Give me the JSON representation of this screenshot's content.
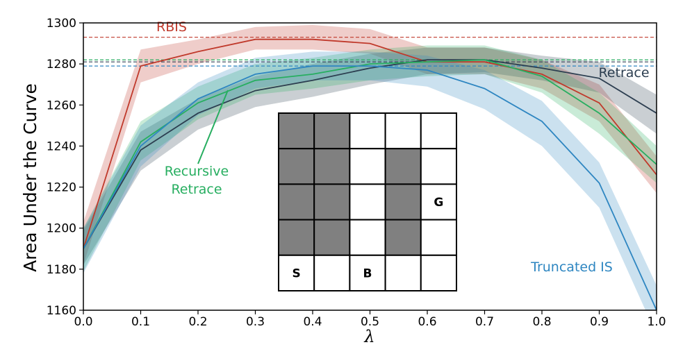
{
  "chart_data": {
    "type": "line",
    "title": "",
    "xlabel": "λ",
    "ylabel": "Area Under the Curve",
    "xlim": [
      0.0,
      1.0
    ],
    "ylim": [
      1160,
      1300
    ],
    "x_ticks": [
      "0.0",
      "0.1",
      "0.2",
      "0.3",
      "0.4",
      "0.5",
      "0.6",
      "0.7",
      "0.8",
      "0.9",
      "1.0"
    ],
    "y_ticks": [
      "1160",
      "1180",
      "1200",
      "1220",
      "1240",
      "1260",
      "1280",
      "1300"
    ],
    "x": [
      0.0,
      0.1,
      0.2,
      0.3,
      0.4,
      0.5,
      0.6,
      0.7,
      0.8,
      0.9,
      1.0
    ],
    "series": [
      {
        "name": "RBIS",
        "color": "#c0392b",
        "values": [
          1190,
          1279,
          1286,
          1292,
          1292,
          1290,
          1281,
          1281,
          1275,
          1261,
          1226
        ],
        "lower": [
          1182,
          1271,
          1280,
          1287,
          1287,
          1285,
          1275,
          1275,
          1268,
          1252,
          1217
        ],
        "upper": [
          1203,
          1287,
          1292,
          1298,
          1299,
          1297,
          1288,
          1288,
          1282,
          1270,
          1235
        ],
        "baseline": 1293
      },
      {
        "name": "Retrace",
        "color": "#2c3e50",
        "values": [
          1190,
          1238,
          1256,
          1267,
          1272,
          1278,
          1282,
          1282,
          1278,
          1273,
          1256
        ],
        "lower": [
          1182,
          1228,
          1248,
          1259,
          1264,
          1270,
          1275,
          1276,
          1272,
          1266,
          1246
        ],
        "upper": [
          1199,
          1247,
          1263,
          1274,
          1280,
          1285,
          1288,
          1288,
          1284,
          1281,
          1265
        ],
        "baseline": 1281
      },
      {
        "name": "Recursive Retrace",
        "color": "#27ae60",
        "values": [
          1190,
          1242,
          1261,
          1272,
          1275,
          1280,
          1281,
          1282,
          1274,
          1256,
          1231
        ],
        "lower": [
          1179,
          1233,
          1253,
          1265,
          1268,
          1272,
          1274,
          1275,
          1266,
          1246,
          1222
        ],
        "upper": [
          1200,
          1252,
          1269,
          1280,
          1283,
          1287,
          1289,
          1289,
          1282,
          1266,
          1240
        ],
        "baseline": 1282
      },
      {
        "name": "Truncated IS",
        "color": "#2e86c1",
        "values": [
          1190,
          1240,
          1263,
          1275,
          1279,
          1279,
          1277,
          1268,
          1252,
          1222,
          1160
        ],
        "lower": [
          1178,
          1230,
          1255,
          1268,
          1272,
          1272,
          1269,
          1258,
          1240,
          1210,
          1148
        ],
        "upper": [
          1200,
          1250,
          1271,
          1283,
          1286,
          1286,
          1284,
          1277,
          1262,
          1232,
          1172
        ],
        "baseline": 1279
      }
    ],
    "annotations": [
      {
        "text": "RBIS",
        "series": "RBIS"
      },
      {
        "text": "Retrace",
        "series": "Retrace"
      },
      {
        "text": [
          "Recursive",
          "Retrace"
        ],
        "series": "Recursive Retrace"
      },
      {
        "text": "Truncated IS",
        "series": "Truncated IS"
      }
    ],
    "inset_grid": {
      "rows": 5,
      "cols": 5,
      "filled": [
        [
          0,
          0
        ],
        [
          0,
          1
        ],
        [
          1,
          0
        ],
        [
          1,
          1
        ],
        [
          1,
          3
        ],
        [
          2,
          0
        ],
        [
          2,
          1
        ],
        [
          2,
          3
        ],
        [
          3,
          0
        ],
        [
          3,
          1
        ],
        [
          3,
          3
        ]
      ],
      "fill_color": "#808080",
      "labels": [
        {
          "row": 2,
          "col": 4,
          "text": "G"
        },
        {
          "row": 4,
          "col": 0,
          "text": "S"
        },
        {
          "row": 4,
          "col": 2,
          "text": "B"
        }
      ]
    }
  }
}
